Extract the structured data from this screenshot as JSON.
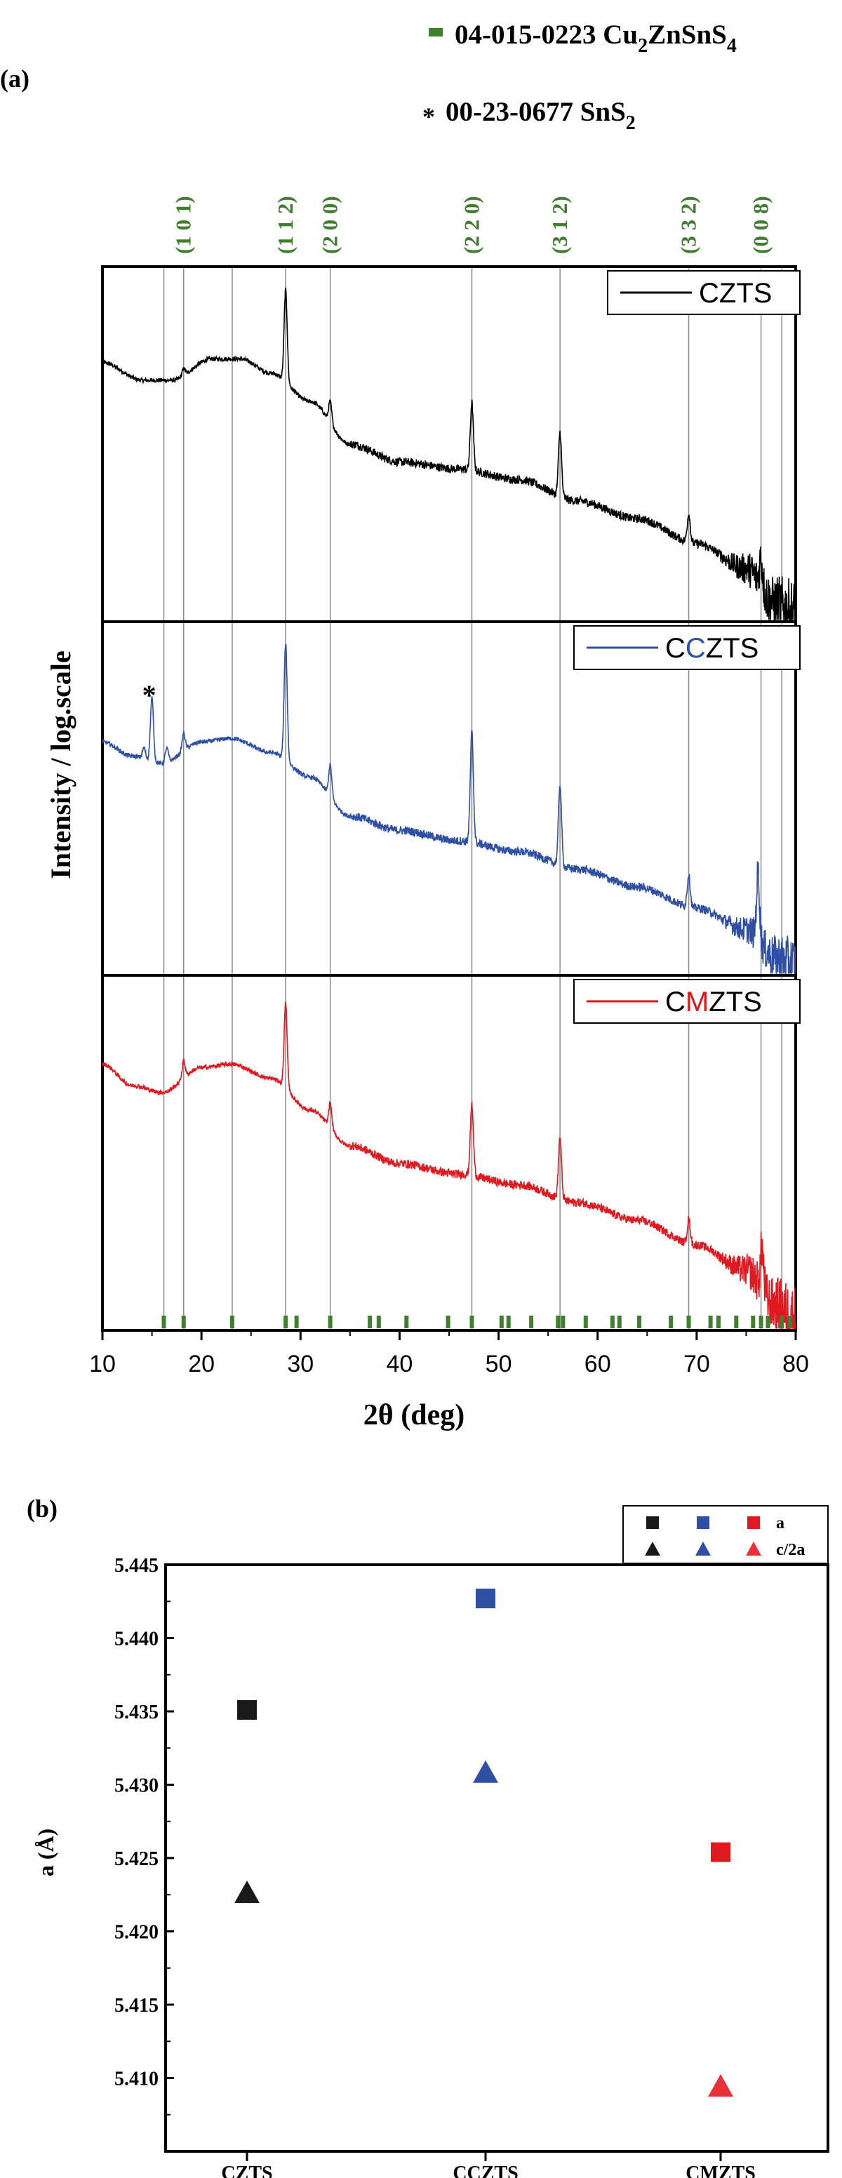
{
  "chart_data": [
    {
      "panel_label": "(a)",
      "type": "line",
      "xlabel": "2θ (deg)",
      "ylabel": "Intensity / log.scale",
      "xlim": [
        10,
        80
      ],
      "x_ticks": [
        10,
        20,
        30,
        40,
        50,
        60,
        70,
        80
      ],
      "legend_top": [
        {
          "marker": "bar",
          "text": "04-015-0223 Cu",
          "sub1": "2",
          "text2": "ZnSnS",
          "sub2": "4",
          "color": "#3f7f2f"
        },
        {
          "marker": "*",
          "text": "00-23-0677 SnS",
          "sub1": "2",
          "color": "#000000"
        }
      ],
      "hkl_labels": [
        {
          "label": "(1 0 1)",
          "x": 18.2
        },
        {
          "label": "(1 1 2)",
          "x": 28.5
        },
        {
          "label": "(2 0 0)",
          "x": 33.0
        },
        {
          "label": "(2 2 0)",
          "x": 47.3
        },
        {
          "label": "(3 1 2)",
          "x": 56.2
        },
        {
          "label": "(3 3 2)",
          "x": 69.2
        },
        {
          "label": "(0 0 8)",
          "x": 76.5
        }
      ],
      "hkl_color": "#3f7f2f",
      "reference_lines": [
        16.2,
        18.2,
        23.1,
        28.5,
        33.0,
        47.3,
        56.2,
        69.2,
        76.5,
        78.6
      ],
      "reference_ticks": [
        16.2,
        18.2,
        23.1,
        28.5,
        29.6,
        33.0,
        37.0,
        37.9,
        40.7,
        44.9,
        47.3,
        50.3,
        51.0,
        53.3,
        56.0,
        56.5,
        58.8,
        61.5,
        62.2,
        64.2,
        67.4,
        69.2,
        71.4,
        72.2,
        74.0,
        75.7,
        76.5,
        77.2,
        78.6,
        79.4
      ],
      "annotation": {
        "text": "*",
        "x": 15.0,
        "series": "CCZTS"
      },
      "series": [
        {
          "legend": "CZTS",
          "legend_parts": [
            {
              "t": "C",
              "c": "#000000"
            },
            {
              "t": "ZTS",
              "c": "#000000"
            }
          ],
          "color": "#000000",
          "baseline": [
            [
              10,
              0.73
            ],
            [
              14,
              0.68
            ],
            [
              17,
              0.68
            ],
            [
              21,
              0.74
            ],
            [
              24,
              0.74
            ],
            [
              27,
              0.7
            ],
            [
              31,
              0.62
            ],
            [
              35,
              0.5
            ],
            [
              40,
              0.45
            ],
            [
              46,
              0.43
            ],
            [
              52,
              0.4
            ],
            [
              58,
              0.34
            ],
            [
              64,
              0.29
            ],
            [
              70,
              0.22
            ],
            [
              75,
              0.15
            ],
            [
              78,
              0.05
            ],
            [
              80,
              0.02
            ]
          ],
          "peaks": [
            [
              28.5,
              0.26
            ],
            [
              33.0,
              0.06
            ],
            [
              47.3,
              0.19
            ],
            [
              56.2,
              0.18
            ],
            [
              69.2,
              0.08
            ],
            [
              76.5,
              0.08
            ],
            [
              18.2,
              0.02
            ]
          ],
          "noise": [
            0.006,
            0.09
          ]
        },
        {
          "legend": "CCZTS",
          "legend_parts": [
            {
              "t": "C",
              "c": "#000000"
            },
            {
              "t": "C",
              "c": "#2f4fa5"
            },
            {
              "t": "ZTS",
              "c": "#000000"
            }
          ],
          "color": "#2f4fa5",
          "baseline": [
            [
              10,
              0.66
            ],
            [
              13,
              0.62
            ],
            [
              16,
              0.6
            ],
            [
              20,
              0.66
            ],
            [
              23,
              0.67
            ],
            [
              27,
              0.63
            ],
            [
              31,
              0.56
            ],
            [
              35,
              0.45
            ],
            [
              40,
              0.41
            ],
            [
              46,
              0.38
            ],
            [
              52,
              0.35
            ],
            [
              58,
              0.3
            ],
            [
              64,
              0.25
            ],
            [
              70,
              0.19
            ],
            [
              75,
              0.13
            ],
            [
              78,
              0.05
            ],
            [
              80,
              0.03
            ]
          ],
          "peaks": [
            [
              15.0,
              0.18
            ],
            [
              14.2,
              0.03
            ],
            [
              16.5,
              0.04
            ],
            [
              18.2,
              0.05
            ],
            [
              28.5,
              0.33
            ],
            [
              33.0,
              0.09
            ],
            [
              47.3,
              0.31
            ],
            [
              56.2,
              0.23
            ],
            [
              69.2,
              0.09
            ],
            [
              76.2,
              0.19
            ]
          ],
          "noise": [
            0.006,
            0.07
          ]
        },
        {
          "legend": "CMZTS",
          "legend_parts": [
            {
              "t": "C",
              "c": "#000000"
            },
            {
              "t": "M",
              "c": "#e0181f"
            },
            {
              "t": "ZTS",
              "c": "#000000"
            }
          ],
          "color": "#e0181f",
          "baseline": [
            [
              10,
              0.75
            ],
            [
              13,
              0.69
            ],
            [
              16,
              0.67
            ],
            [
              20,
              0.74
            ],
            [
              23,
              0.75
            ],
            [
              27,
              0.71
            ],
            [
              31,
              0.62
            ],
            [
              35,
              0.52
            ],
            [
              40,
              0.47
            ],
            [
              46,
              0.44
            ],
            [
              52,
              0.41
            ],
            [
              58,
              0.36
            ],
            [
              64,
              0.31
            ],
            [
              70,
              0.24
            ],
            [
              75,
              0.17
            ],
            [
              78,
              0.07
            ],
            [
              80,
              0.03
            ]
          ],
          "peaks": [
            [
              18.2,
              0.05
            ],
            [
              28.5,
              0.24
            ],
            [
              33.0,
              0.07
            ],
            [
              47.3,
              0.2
            ],
            [
              56.2,
              0.17
            ],
            [
              69.2,
              0.07
            ],
            [
              76.6,
              0.12
            ]
          ],
          "noise": [
            0.006,
            0.09
          ]
        }
      ]
    },
    {
      "panel_label": "(b)",
      "type": "scatter",
      "ylabel": "a (Å)",
      "categories": [
        "CZTS",
        "CCZTS",
        "CMZTS"
      ],
      "ylim": [
        5.405,
        5.445
      ],
      "y_ticks": [
        "5.410",
        "5.415",
        "5.420",
        "5.425",
        "5.430",
        "5.435",
        "5.440",
        "5.445"
      ],
      "series": [
        {
          "name": "a",
          "marker": "square",
          "values": [
            5.4351,
            5.4427,
            5.4254
          ],
          "colors": [
            "#1a1a1a",
            "#2f4fa5",
            "#e0181f"
          ]
        },
        {
          "name": "c/2a",
          "marker": "triangle",
          "values": [
            5.4226,
            5.4308,
            5.4094
          ],
          "colors": [
            "#1a1a1a",
            "#2f4fa5",
            "#e8303a"
          ]
        }
      ]
    }
  ]
}
